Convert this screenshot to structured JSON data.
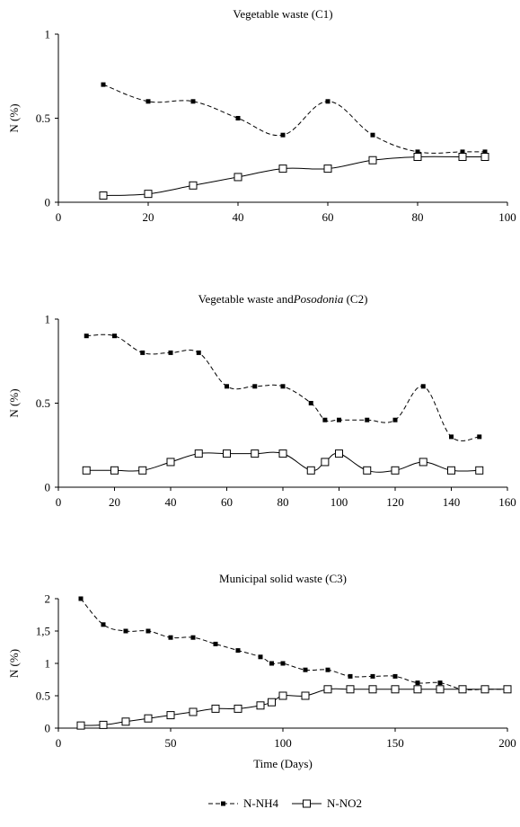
{
  "chart_data": [
    {
      "type": "line",
      "title": "Vegetable waste (C1)",
      "ylabel": "N (%)",
      "xlabel": "",
      "xlim": [
        0,
        100
      ],
      "ylim": [
        0,
        1
      ],
      "xticks": [
        0,
        20,
        40,
        60,
        80,
        100
      ],
      "yticks": [
        0,
        0.5,
        1
      ],
      "ytick_labels": [
        "0",
        "0.5",
        "1"
      ],
      "grid": false,
      "series": [
        {
          "name": "N-NH4",
          "style": "dashed",
          "marker": "filled-square",
          "x": [
            10,
            20,
            30,
            40,
            50,
            60,
            70,
            80,
            90,
            95
          ],
          "y": [
            0.7,
            0.6,
            0.6,
            0.5,
            0.4,
            0.6,
            0.4,
            0.3,
            0.3,
            0.3
          ]
        },
        {
          "name": "N-NO2",
          "style": "solid",
          "marker": "open-square",
          "x": [
            10,
            20,
            30,
            40,
            50,
            60,
            70,
            80,
            90,
            95
          ],
          "y": [
            0.04,
            0.05,
            0.1,
            0.15,
            0.2,
            0.2,
            0.25,
            0.27,
            0.27,
            0.27
          ]
        }
      ]
    },
    {
      "type": "line",
      "title": "Vegetable waste and",
      "title_italic": "Posodonia",
      "title_suffix": " (C2)",
      "ylabel": "N (%)",
      "xlabel": "",
      "xlim": [
        0,
        160
      ],
      "ylim": [
        0,
        1
      ],
      "xticks": [
        0,
        20,
        40,
        60,
        80,
        100,
        120,
        140,
        160
      ],
      "yticks": [
        0,
        0.5,
        1
      ],
      "ytick_labels": [
        "0",
        "0.5",
        "1"
      ],
      "grid": false,
      "series": [
        {
          "name": "N-NH4",
          "style": "dashed",
          "marker": "filled-square",
          "x": [
            10,
            20,
            30,
            40,
            50,
            60,
            70,
            80,
            90,
            95,
            100,
            110,
            120,
            130,
            140,
            150
          ],
          "y": [
            0.9,
            0.9,
            0.8,
            0.8,
            0.8,
            0.6,
            0.6,
            0.6,
            0.5,
            0.4,
            0.4,
            0.4,
            0.4,
            0.6,
            0.3,
            0.3
          ]
        },
        {
          "name": "N-NO2",
          "style": "solid",
          "marker": "open-square",
          "x": [
            10,
            20,
            30,
            40,
            50,
            60,
            70,
            80,
            90,
            95,
            100,
            110,
            120,
            130,
            140,
            150
          ],
          "y": [
            0.1,
            0.1,
            0.1,
            0.15,
            0.2,
            0.2,
            0.2,
            0.2,
            0.1,
            0.15,
            0.2,
            0.1,
            0.1,
            0.15,
            0.1,
            0.1
          ]
        }
      ]
    },
    {
      "type": "line",
      "title": "Municipal solid waste (C3)",
      "ylabel": "N (%)",
      "xlabel": "Time (Days)",
      "xlim": [
        0,
        200
      ],
      "ylim": [
        0,
        2
      ],
      "xticks": [
        0,
        50,
        100,
        150,
        200
      ],
      "yticks": [
        0,
        0.5,
        1,
        1.5,
        2
      ],
      "ytick_labels": [
        "0",
        "0.5",
        "1",
        "1,5",
        "2"
      ],
      "grid": false,
      "series": [
        {
          "name": "N-NH4",
          "style": "dashed",
          "marker": "filled-square",
          "x": [
            10,
            20,
            30,
            40,
            50,
            60,
            70,
            80,
            90,
            95,
            100,
            110,
            120,
            130,
            140,
            150,
            160,
            170,
            180,
            190,
            200
          ],
          "y": [
            2.0,
            1.6,
            1.5,
            1.5,
            1.4,
            1.4,
            1.3,
            1.2,
            1.1,
            1.0,
            1.0,
            0.9,
            0.9,
            0.8,
            0.8,
            0.8,
            0.7,
            0.7,
            0.6,
            0.6,
            0.6
          ]
        },
        {
          "name": "N-NO2",
          "style": "solid",
          "marker": "open-square",
          "x": [
            10,
            20,
            30,
            40,
            50,
            60,
            70,
            80,
            90,
            95,
            100,
            110,
            120,
            130,
            140,
            150,
            160,
            170,
            180,
            190,
            200
          ],
          "y": [
            0.04,
            0.05,
            0.1,
            0.15,
            0.2,
            0.25,
            0.3,
            0.3,
            0.35,
            0.4,
            0.5,
            0.5,
            0.6,
            0.6,
            0.6,
            0.6,
            0.6,
            0.6,
            0.6,
            0.6,
            0.6
          ]
        }
      ]
    }
  ],
  "legend": {
    "position": "bottom-center",
    "entries": [
      {
        "label": "N-NH4",
        "style": "dashed",
        "marker": "filled-square"
      },
      {
        "label": "N-NO2",
        "style": "solid",
        "marker": "open-square"
      }
    ]
  }
}
